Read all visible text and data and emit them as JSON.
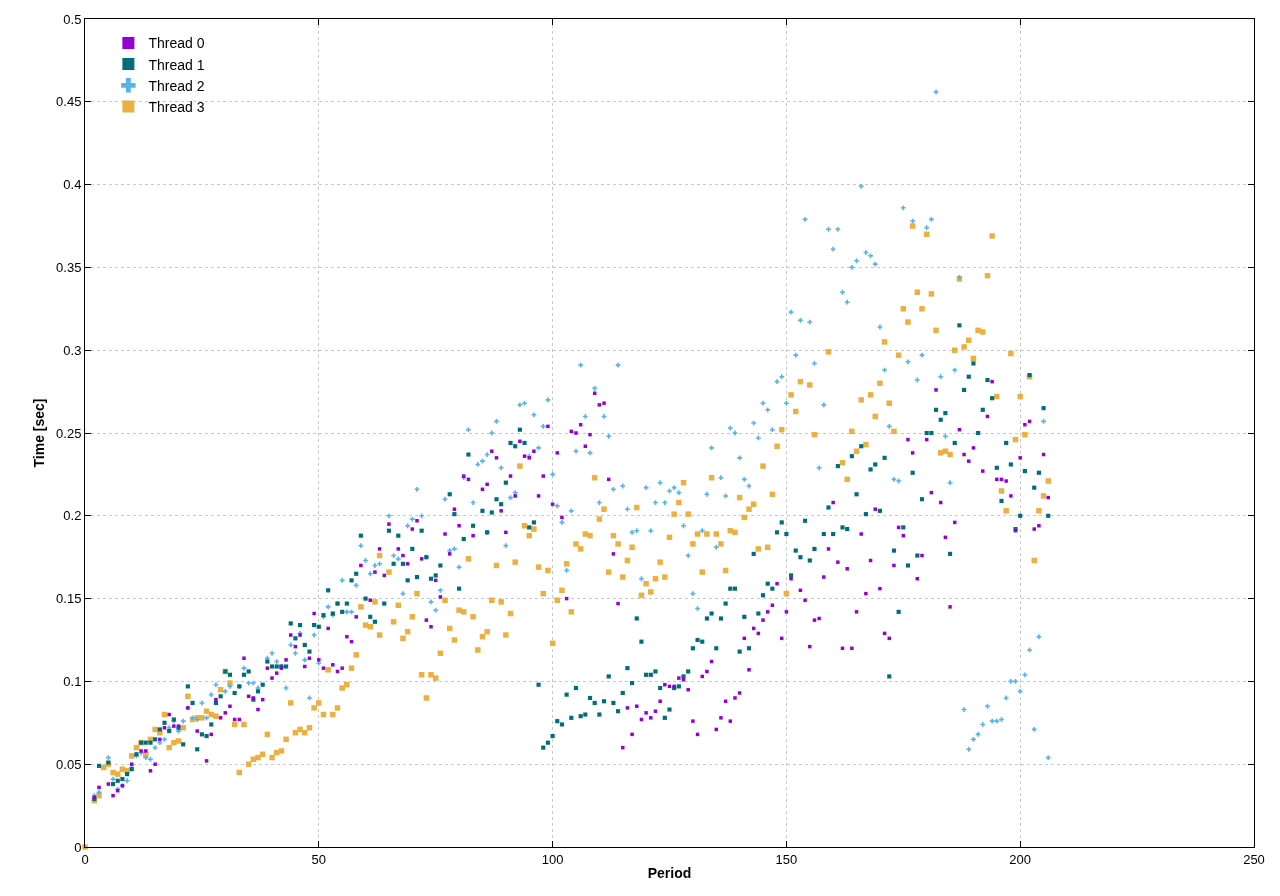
{
  "chart_data": {
    "type": "scatter",
    "xlabel": "Period",
    "ylabel": "Time [sec]",
    "xlim": [
      0,
      250
    ],
    "xticks": [
      0,
      50,
      100,
      150,
      200,
      250
    ],
    "ylim": [
      0,
      0.5
    ],
    "yticks": [
      0,
      0.05,
      0.1,
      0.15,
      0.2,
      0.25,
      0.3,
      0.35,
      0.4,
      0.45,
      0.5
    ],
    "grid": true,
    "legend": "top left",
    "series": [
      {
        "name": "Thread 0",
        "color": "#9400d3",
        "marker": "square",
        "x": [
          2,
          3,
          5,
          6,
          7,
          8,
          10,
          12,
          13,
          14,
          15,
          16,
          17,
          18,
          19,
          20,
          22,
          24,
          26,
          27,
          28,
          29,
          30,
          31,
          32,
          33,
          34,
          35,
          36,
          37,
          38,
          39,
          40,
          41,
          42,
          43,
          44,
          45,
          46,
          47,
          48,
          49,
          50,
          51,
          52,
          53,
          54,
          55,
          56,
          57,
          58,
          59,
          61,
          62,
          63,
          64,
          65,
          67,
          68,
          69,
          70,
          71,
          72,
          73,
          74,
          75,
          76,
          77,
          78,
          79,
          80,
          81,
          82,
          83,
          85,
          86,
          87,
          88,
          89,
          90,
          91,
          92,
          93,
          94,
          95,
          96,
          97,
          98,
          99,
          100,
          101,
          102,
          103,
          104,
          105,
          106,
          107,
          108,
          109,
          110,
          111,
          112,
          113,
          114,
          115,
          116,
          117,
          118,
          119,
          120,
          121,
          122,
          123,
          124,
          125,
          126,
          127,
          128,
          129,
          130,
          131,
          132,
          133,
          134,
          135,
          136,
          137,
          138,
          139,
          140,
          141,
          142,
          143,
          144,
          145,
          146,
          147,
          148,
          149,
          150,
          151,
          153,
          154,
          155,
          156,
          157,
          158,
          159,
          160,
          161,
          162,
          163,
          164,
          165,
          166,
          167,
          168,
          169,
          170,
          171,
          172,
          173,
          174,
          175,
          176,
          177,
          178,
          179,
          180,
          181,
          182,
          183,
          184,
          185,
          186,
          187,
          188,
          189,
          190,
          192,
          193,
          194,
          195,
          196,
          197,
          198,
          199,
          200,
          201,
          202,
          203,
          204,
          205,
          206
        ],
        "values": [
          0.03,
          0.036,
          0.038,
          0.031,
          0.034,
          0.037,
          0.05,
          0.058,
          0.058,
          0.046,
          0.05,
          0.065,
          0.072,
          0.08,
          0.073,
          0.073,
          0.084,
          0.07,
          0.052,
          0.068,
          0.089,
          0.078,
          0.081,
          0.085,
          0.077,
          0.077,
          0.114,
          0.091,
          0.09,
          0.083,
          0.089,
          0.108,
          0.102,
          0.105,
          0.108,
          0.113,
          0.128,
          0.121,
          0.128,
          0.109,
          0.114,
          0.141,
          0.113,
          0.108,
          0.132,
          0.11,
          0.106,
          0.108,
          0.127,
          0.124,
          0.139,
          0.17,
          0.149,
          0.166,
          0.18,
          0.164,
          0.195,
          0.18,
          0.176,
          0.171,
          0.192,
          0.197,
          0.174,
          0.137,
          0.133,
          0.161,
          0.151,
          0.189,
          0.177,
          0.204,
          0.194,
          0.224,
          0.222,
          0.188,
          0.216,
          0.219,
          0.239,
          0.235,
          0.203,
          0.19,
          0.224,
          0.212,
          0.245,
          0.236,
          0.235,
          0.239,
          0.212,
          0.224,
          0.254,
          0.207,
          0.238,
          0.199,
          0.15,
          0.251,
          0.25,
          0.255,
          0.242,
          0.249,
          0.274,
          0.267,
          0.268,
          0.222,
          0.177,
          0.147,
          0.06,
          0.084,
          0.068,
          0.085,
          0.077,
          0.081,
          0.078,
          0.082,
          0.088,
          0.098,
          0.097,
          0.097,
          0.102,
          0.101,
          0.095,
          0.076,
          0.068,
          0.103,
          0.106,
          0.112,
          0.071,
          0.078,
          0.088,
          0.076,
          0.09,
          0.093,
          0.126,
          0.107,
          0.132,
          0.129,
          0.137,
          0.142,
          0.146,
          0.159,
          0.126,
          0.142,
          0.162,
          0.155,
          0.149,
          0.121,
          0.137,
          0.138,
          0.163,
          0.18,
          0.208,
          0.172,
          0.12,
          0.168,
          0.12,
          0.142,
          0.189,
          0.153,
          0.173,
          0.204,
          0.156,
          0.129,
          0.126,
          0.17,
          0.193,
          0.188,
          0.246,
          0.238,
          0.162,
          0.176,
          0.246,
          0.214,
          0.276,
          0.208,
          0.187,
          0.145,
          0.196,
          0.252,
          0.237,
          0.233,
          0.241,
          0.227,
          0.26,
          0.281,
          0.222,
          0.222,
          0.221,
          0.212,
          0.191,
          0.235,
          0.255,
          0.257,
          0.192,
          0.194,
          0.237,
          0.211
        ]
      },
      {
        "name": "Thread 1",
        "color": "#006e7a",
        "marker": "square",
        "x": [
          2,
          3,
          5,
          6,
          7,
          8,
          9,
          10,
          11,
          12,
          13,
          14,
          15,
          16,
          17,
          18,
          19,
          20,
          21,
          22,
          23,
          24,
          25,
          26,
          27,
          28,
          29,
          30,
          31,
          32,
          33,
          34,
          35,
          36,
          37,
          38,
          39,
          40,
          41,
          42,
          43,
          44,
          45,
          46,
          47,
          48,
          49,
          50,
          51,
          52,
          53,
          54,
          55,
          56,
          57,
          58,
          59,
          60,
          61,
          62,
          64,
          65,
          66,
          67,
          68,
          69,
          70,
          71,
          72,
          73,
          74,
          75,
          76,
          78,
          79,
          80,
          81,
          82,
          83,
          85,
          86,
          87,
          88,
          89,
          90,
          91,
          92,
          93,
          94,
          95,
          96,
          97,
          98,
          99,
          100,
          101,
          102,
          103,
          104,
          105,
          106,
          107,
          108,
          109,
          110,
          111,
          112,
          113,
          114,
          115,
          116,
          117,
          118,
          119,
          120,
          121,
          122,
          123,
          124,
          125,
          126,
          127,
          128,
          129,
          130,
          131,
          132,
          133,
          134,
          135,
          136,
          137,
          138,
          139,
          140,
          141,
          142,
          143,
          144,
          145,
          146,
          147,
          148,
          149,
          150,
          151,
          152,
          153,
          154,
          155,
          156,
          158,
          159,
          160,
          161,
          162,
          163,
          164,
          165,
          166,
          167,
          168,
          169,
          170,
          171,
          172,
          173,
          174,
          175,
          176,
          177,
          178,
          179,
          180,
          181,
          182,
          183,
          184,
          185,
          186,
          187,
          188,
          189,
          190,
          191,
          192,
          193,
          194,
          195,
          196,
          197,
          198,
          199,
          200,
          201,
          202,
          203,
          204,
          205,
          206
        ],
        "values": [
          0.029,
          0.049,
          0.051,
          0.038,
          0.04,
          0.041,
          0.044,
          0.047,
          0.056,
          0.063,
          0.063,
          0.063,
          0.065,
          0.071,
          0.075,
          0.07,
          0.077,
          0.072,
          0.062,
          0.097,
          0.087,
          0.059,
          0.068,
          0.067,
          0.074,
          0.087,
          0.091,
          0.106,
          0.104,
          0.093,
          0.097,
          0.104,
          0.106,
          0.089,
          0.094,
          0.098,
          0.112,
          0.109,
          0.109,
          0.109,
          0.109,
          0.135,
          0.126,
          0.134,
          0.122,
          0.118,
          0.134,
          0.133,
          0.14,
          0.155,
          0.141,
          0.147,
          0.142,
          0.147,
          0.161,
          0.165,
          0.188,
          0.15,
          0.139,
          0.136,
          0.147,
          0.191,
          0.171,
          0.188,
          0.171,
          0.161,
          0.18,
          0.163,
          0.191,
          0.175,
          0.162,
          0.164,
          0.17,
          0.213,
          0.201,
          0.156,
          0.186,
          0.237,
          0.194,
          0.203,
          0.19,
          0.202,
          0.21,
          0.207,
          0.22,
          0.244,
          0.242,
          0.252,
          0.244,
          0.193,
          0.196,
          0.098,
          0.06,
          0.063,
          0.067,
          0.076,
          0.074,
          0.092,
          0.078,
          0.096,
          0.079,
          0.08,
          0.09,
          0.087,
          0.08,
          0.088,
          0.103,
          0.087,
          0.082,
          0.093,
          0.108,
          0.099,
          0.138,
          0.124,
          0.104,
          0.104,
          0.106,
          0.096,
          0.078,
          0.083,
          0.096,
          0.097,
          0.103,
          0.106,
          0.12,
          0.125,
          0.124,
          0.138,
          0.141,
          0.12,
          0.138,
          0.147,
          0.156,
          0.156,
          0.118,
          0.139,
          0.12,
          0.177,
          0.141,
          0.152,
          0.159,
          0.156,
          0.19,
          0.196,
          0.189,
          0.164,
          0.179,
          0.175,
          0.197,
          0.173,
          0.18,
          0.189,
          0.205,
          0.189,
          0.23,
          0.193,
          0.192,
          0.236,
          0.213,
          0.242,
          0.201,
          0.228,
          0.231,
          0.203,
          0.235,
          0.103,
          0.179,
          0.142,
          0.193,
          0.17,
          0.226,
          0.176,
          0.21,
          0.25,
          0.25,
          0.264,
          0.258,
          0.262,
          0.177,
          0.244,
          0.315,
          0.276,
          0.284,
          0.292,
          0.25,
          0.264,
          0.282,
          0.271,
          0.229,
          0.209,
          0.244,
          0.231,
          0.192,
          0.2,
          0.227,
          0.285,
          0.217,
          0.226,
          0.265,
          0.2
        ]
      },
      {
        "name": "Thread 2",
        "color": "#56b4e9",
        "marker": "cross",
        "x": [
          2,
          3,
          5,
          6,
          7,
          8,
          9,
          10,
          11,
          12,
          13,
          14,
          15,
          16,
          17,
          18,
          19,
          20,
          21,
          22,
          23,
          24,
          25,
          26,
          27,
          28,
          30,
          31,
          33,
          34,
          35,
          36,
          37,
          39,
          40,
          41,
          42,
          43,
          44,
          45,
          46,
          47,
          48,
          49,
          50,
          51,
          52,
          53,
          54,
          55,
          56,
          57,
          58,
          59,
          60,
          61,
          62,
          63,
          65,
          66,
          67,
          68,
          69,
          70,
          71,
          72,
          73,
          74,
          75,
          76,
          77,
          78,
          79,
          80,
          81,
          82,
          83,
          84,
          85,
          86,
          86,
          87,
          88,
          89,
          90,
          91,
          92,
          93,
          94,
          95,
          96,
          97,
          98,
          99,
          100,
          101,
          102,
          103,
          104,
          105,
          106,
          107,
          108,
          109,
          110,
          111,
          112,
          113,
          114,
          115,
          116,
          117,
          118,
          119,
          120,
          121,
          122,
          123,
          124,
          125,
          126,
          127,
          128,
          129,
          130,
          131,
          132,
          133,
          134,
          135,
          136,
          137,
          138,
          139,
          140,
          141,
          142,
          143,
          144,
          145,
          146,
          147,
          148,
          149,
          150,
          151,
          152,
          153,
          154,
          155,
          156,
          157,
          158,
          159,
          160,
          161,
          162,
          163,
          164,
          165,
          166,
          167,
          168,
          169,
          170,
          171,
          172,
          173,
          174,
          175,
          176,
          177,
          178,
          179,
          180,
          181,
          182,
          183,
          184,
          185,
          186,
          187,
          188,
          189,
          190,
          191,
          192,
          193,
          194,
          195,
          196,
          197,
          198,
          199,
          200,
          201,
          202,
          203,
          204,
          205,
          206
        ],
        "values": [
          0.031,
          0.033,
          0.054,
          0.041,
          0.035,
          0.037,
          0.04,
          0.048,
          0.055,
          0.057,
          0.054,
          0.053,
          0.06,
          0.063,
          0.065,
          0.072,
          0.076,
          0.07,
          0.076,
          0.084,
          0.078,
          0.077,
          0.087,
          0.078,
          0.092,
          0.098,
          0.094,
          0.097,
          0.097,
          0.108,
          0.099,
          0.099,
          0.096,
          0.114,
          0.117,
          0.112,
          0.109,
          0.096,
          0.122,
          0.117,
          0.129,
          0.113,
          0.09,
          0.128,
          0.111,
          0.139,
          0.145,
          0.14,
          0.147,
          0.161,
          0.142,
          0.142,
          0.158,
          0.182,
          0.173,
          0.165,
          0.17,
          0.171,
          0.2,
          0.176,
          0.174,
          0.153,
          0.194,
          0.198,
          0.216,
          0.2,
          0.175,
          0.148,
          0.143,
          0.155,
          0.21,
          0.179,
          0.18,
          0.169,
          0.223,
          0.252,
          0.208,
          0.231,
          0.233,
          0.19,
          0.237,
          0.25,
          0.257,
          0.229,
          0.182,
          0.211,
          0.214,
          0.267,
          0.268,
          0.236,
          0.261,
          0.241,
          0.254,
          0.27,
          0.225,
          0.206,
          0.196,
          0.167,
          0.203,
          0.239,
          0.291,
          0.26,
          0.238,
          0.277,
          0.208,
          0.26,
          0.248,
          0.216,
          0.291,
          0.218,
          0.204,
          0.19,
          0.191,
          0.162,
          0.217,
          0.191,
          0.208,
          0.22,
          0.208,
          0.215,
          0.217,
          0.214,
          0.194,
          0.176,
          0.153,
          0.144,
          0.191,
          0.213,
          0.241,
          0.181,
          0.223,
          0.212,
          0.253,
          0.25,
          0.235,
          0.222,
          0.218,
          0.256,
          0.247,
          0.268,
          0.264,
          0.252,
          0.281,
          0.284,
          0.268,
          0.323,
          0.297,
          0.318,
          0.379,
          0.317,
          0.292,
          0.229,
          0.267,
          0.373,
          0.361,
          0.373,
          0.335,
          0.329,
          0.35,
          0.354,
          0.399,
          0.359,
          0.357,
          0.352,
          0.314,
          0.288,
          0.254,
          0.222,
          0.221,
          0.386,
          0.293,
          0.378,
          0.282,
          0.297,
          0.374,
          0.379,
          0.456,
          0.284,
          0.248,
          0.22,
          0.288,
          0.344,
          0.083,
          0.059,
          0.065,
          0.068,
          0.074,
          0.085,
          0.076,
          0.076,
          0.077,
          0.09,
          0.1,
          0.1,
          0.094,
          0.104,
          0.119,
          0.071,
          0.127,
          0.257,
          0.054
        ]
      },
      {
        "name": "Thread 3",
        "color": "#ecb040",
        "marker": "square",
        "x": [
          0,
          2,
          3,
          4,
          5,
          6,
          7,
          8,
          9,
          10,
          11,
          12,
          13,
          14,
          15,
          16,
          17,
          18,
          19,
          20,
          21,
          22,
          23,
          24,
          25,
          26,
          27,
          28,
          29,
          30,
          31,
          32,
          33,
          34,
          35,
          36,
          37,
          38,
          39,
          40,
          41,
          42,
          43,
          44,
          45,
          46,
          47,
          48,
          49,
          50,
          51,
          52,
          53,
          54,
          55,
          56,
          57,
          58,
          59,
          60,
          61,
          62,
          63,
          63,
          65,
          66,
          67,
          68,
          69,
          70,
          71,
          72,
          73,
          74,
          75,
          76,
          77,
          78,
          79,
          80,
          81,
          82,
          83,
          84,
          85,
          86,
          87,
          88,
          89,
          90,
          91,
          92,
          93,
          94,
          95,
          96,
          97,
          98,
          99,
          100,
          101,
          102,
          103,
          104,
          105,
          106,
          107,
          108,
          109,
          110,
          111,
          112,
          113,
          114,
          115,
          116,
          117,
          118,
          119,
          120,
          121,
          122,
          123,
          124,
          125,
          126,
          127,
          128,
          129,
          130,
          131,
          132,
          133,
          134,
          135,
          136,
          137,
          138,
          139,
          140,
          141,
          142,
          143,
          144,
          145,
          146,
          147,
          148,
          149,
          150,
          151,
          152,
          153,
          155,
          156,
          159,
          162,
          163,
          164,
          165,
          166,
          167,
          168,
          169,
          170,
          171,
          172,
          173,
          174,
          175,
          176,
          177,
          178,
          179,
          180,
          181,
          182,
          183,
          184,
          185,
          186,
          187,
          188,
          189,
          190,
          191,
          192,
          193,
          194,
          195,
          196,
          197,
          198,
          199,
          200,
          201,
          202,
          203,
          204,
          205,
          206
        ],
        "values": [
          0,
          0.028,
          0.031,
          0.048,
          0.05,
          0.045,
          0.044,
          0.047,
          0.046,
          0.055,
          0.06,
          0.063,
          0.056,
          0.065,
          0.071,
          0.069,
          0.08,
          0.06,
          0.063,
          0.064,
          0.072,
          0.091,
          0.077,
          0.078,
          0.078,
          0.082,
          0.08,
          0.079,
          0.095,
          0.106,
          0.099,
          0.074,
          0.045,
          0.074,
          0.05,
          0.053,
          0.054,
          0.056,
          0.068,
          0.054,
          0.057,
          0.058,
          0.065,
          0.087,
          0.069,
          0.071,
          0.069,
          0.072,
          0.084,
          0.087,
          0.08,
          0.107,
          0.08,
          0.084,
          0.096,
          0.098,
          0.108,
          0.116,
          0.145,
          0.134,
          0.133,
          0.148,
          0.176,
          0.128,
          0.166,
          0.136,
          0.146,
          0.126,
          0.13,
          0.139,
          0.153,
          0.104,
          0.09,
          0.104,
          0.102,
          0.117,
          0.149,
          0.132,
          0.125,
          0.143,
          0.142,
          0.174,
          0.139,
          0.119,
          0.127,
          0.13,
          0.149,
          0.17,
          0.148,
          0.128,
          0.141,
          0.172,
          0.23,
          0.194,
          0.188,
          0.192,
          0.169,
          0.153,
          0.167,
          0.123,
          0.149,
          0.155,
          0.171,
          0.142,
          0.183,
          0.18,
          0.189,
          0.188,
          0.223,
          0.198,
          0.204,
          0.166,
          0.188,
          0.183,
          0.163,
          0.173,
          0.181,
          0.205,
          0.152,
          0.159,
          0.154,
          0.162,
          0.172,
          0.163,
          0.187,
          0.201,
          0.208,
          0.22,
          0.201,
          0.183,
          0.189,
          0.166,
          0.189,
          0.223,
          0.189,
          0.183,
          0.167,
          0.191,
          0.19,
          0.211,
          0.199,
          0.204,
          0.207,
          0.18,
          0.23,
          0.181,
          0.213,
          0.242,
          0.252,
          0.153,
          0.273,
          0.263,
          0.281,
          0.279,
          0.249,
          0.299,
          0.232,
          0.222,
          0.251,
          0.239,
          0.27,
          0.243,
          0.273,
          0.26,
          0.28,
          0.305,
          0.268,
          0.251,
          0.297,
          0.325,
          0.317,
          0.375,
          0.335,
          0.325,
          0.37,
          0.334,
          0.312,
          0.238,
          0.239,
          0.237,
          0.3,
          0.343,
          0.302,
          0.306,
          0.295,
          0.312,
          0.311,
          0.345,
          0.369,
          0.272,
          0.215,
          0.203,
          0.298,
          0.246,
          0.272,
          0.249,
          0.284,
          0.173,
          0.203,
          0.212,
          0.221
        ]
      }
    ]
  }
}
